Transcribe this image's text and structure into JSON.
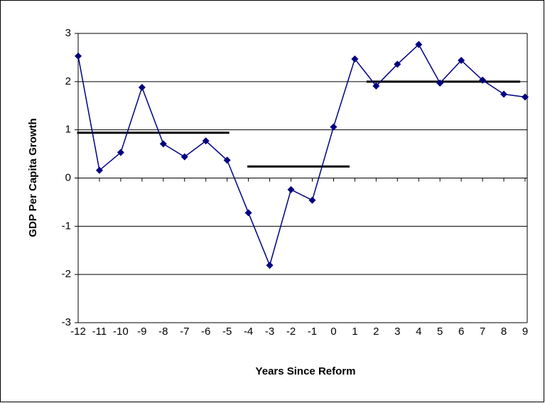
{
  "chart_data": {
    "type": "line",
    "x_label": "Years Since Reform",
    "y_label": "GDP Per Capita Growth",
    "x": [
      -12,
      -11,
      -10,
      -9,
      -8,
      -7,
      -6,
      -5,
      -4,
      -3,
      -2,
      -1,
      0,
      1,
      2,
      3,
      4,
      5,
      6,
      7,
      8,
      9
    ],
    "series": [
      {
        "color": "#000080",
        "values": [
          2.53,
          0.16,
          0.53,
          1.88,
          0.71,
          0.44,
          0.77,
          0.37,
          -0.72,
          -1.81,
          -0.24,
          -0.46,
          1.06,
          2.47,
          1.91,
          2.36,
          2.77,
          1.97,
          2.44,
          2.03,
          1.74,
          1.68
        ]
      }
    ],
    "segments": [
      {
        "x": [
          -12.05,
          -4.9
        ],
        "y": 0.94
      },
      {
        "x": [
          -4.05,
          0.75
        ],
        "y": 0.24
      },
      {
        "x": [
          1.55,
          8.77
        ],
        "y": 2.0
      }
    ],
    "segment_color": "#000000",
    "xlim": [
      -12,
      9
    ],
    "xticks": [
      -12,
      -11,
      -10,
      -9,
      -8,
      -7,
      -6,
      -5,
      -4,
      -3,
      -2,
      -1,
      0,
      1,
      2,
      3,
      4,
      5,
      6,
      7,
      8,
      9
    ],
    "ylim": [
      -3,
      3
    ],
    "yticks": [
      -3,
      -2,
      -1,
      0,
      1,
      2,
      3
    ],
    "grid": true
  }
}
